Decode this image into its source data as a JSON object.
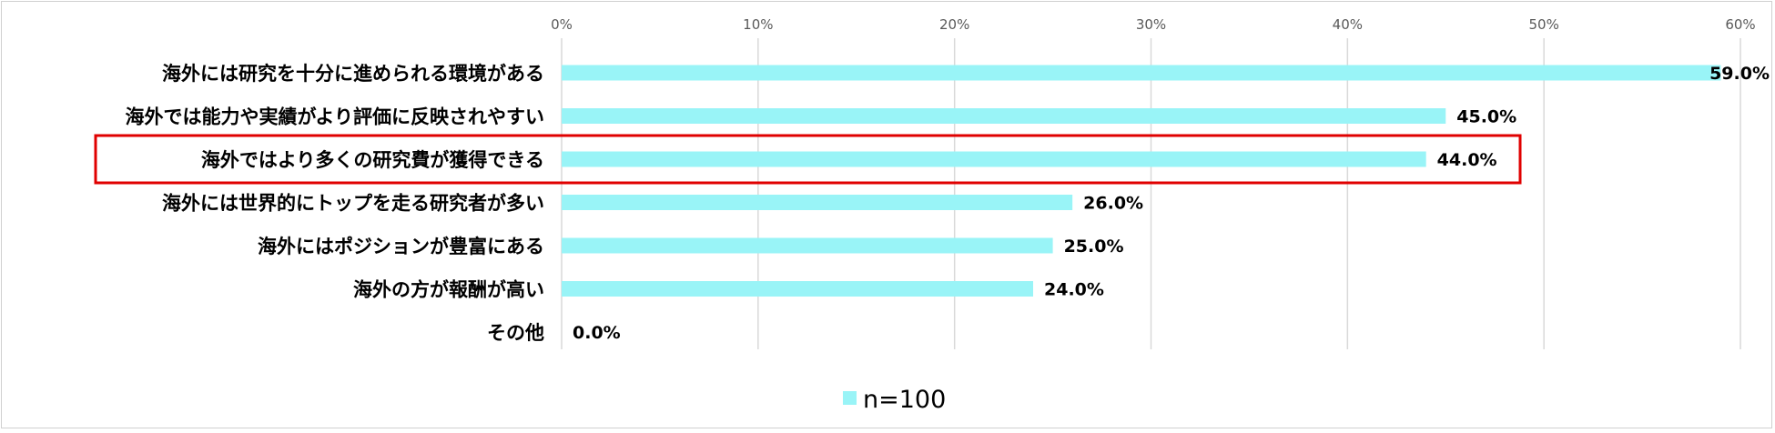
{
  "chart_data": {
    "type": "bar",
    "orientation": "horizontal",
    "categories": [
      "海外には研究を十分に進められる環境がある",
      "海外では能力や実績がより評価に反映されやすい",
      "海外ではより多くの研究費が獲得できる",
      "海外には世界的にトップを走る研究者が多い",
      "海外にはポジションが豊富にある",
      "海外の方が報酬が高い",
      "その他"
    ],
    "series": [
      {
        "name": "n=100",
        "values": [
          59.0,
          45.0,
          44.0,
          26.0,
          25.0,
          24.0,
          0.0
        ],
        "color": "#99f4f7"
      }
    ],
    "data_labels": [
      "59.0%",
      "45.0%",
      "44.0%",
      "26.0%",
      "25.0%",
      "24.0%",
      "0.0%"
    ],
    "xlim": [
      0,
      60
    ],
    "x_ticks": [
      0,
      10,
      20,
      30,
      40,
      50,
      60
    ],
    "x_tick_labels": [
      "0%",
      "10%",
      "20%",
      "30%",
      "40%",
      "50%",
      "60%"
    ],
    "xaxis_position": "top",
    "grid": true,
    "grid_color": "#d9d9d9",
    "legend": "bottom-center",
    "highlight": {
      "category_index": 2,
      "color": "#e00000"
    }
  }
}
